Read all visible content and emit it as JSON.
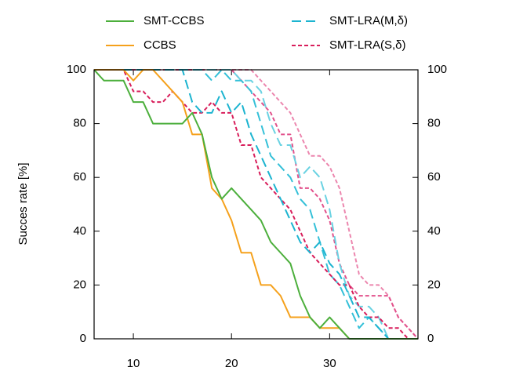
{
  "chart_data": {
    "type": "line",
    "ylabel": "Succes rate [%]",
    "x": [
      6,
      7,
      8,
      9,
      10,
      11,
      12,
      13,
      14,
      15,
      16,
      17,
      18,
      19,
      20,
      21,
      22,
      23,
      24,
      25,
      26,
      27,
      28,
      29,
      30,
      31,
      32,
      33,
      34,
      35,
      36,
      37,
      38,
      39
    ],
    "xlim": [
      6,
      39
    ],
    "xticks": [
      10,
      20,
      30
    ],
    "ylim": [
      0,
      100
    ],
    "yticks": [
      0,
      20,
      40,
      60,
      80,
      100
    ],
    "y2lim": [
      0,
      100
    ],
    "y2ticks": [
      0,
      20,
      40,
      60,
      80,
      100
    ],
    "grid": false,
    "series": [
      {
        "name": "SMT-CCBS",
        "color": "#4caf3c",
        "dash": "none",
        "values": [
          100,
          96,
          96,
          96,
          88,
          88,
          80,
          80,
          80,
          80,
          84,
          76,
          60,
          52,
          56,
          52,
          48,
          44,
          36,
          32,
          28,
          16,
          8,
          4,
          8,
          4,
          0,
          0,
          0,
          0,
          0,
          0,
          0,
          0
        ]
      },
      {
        "name": "CCBS",
        "color": "#f5a11c",
        "dash": "none",
        "values": [
          100,
          100,
          100,
          100,
          96,
          100,
          100,
          96,
          92,
          88,
          76,
          76,
          56,
          52,
          44,
          32,
          32,
          20,
          20,
          16,
          8,
          8,
          8,
          4,
          4,
          4,
          0,
          0,
          0,
          0,
          0,
          0,
          0,
          0
        ]
      },
      {
        "name": "SMT-LRA(M,δ)",
        "color": "#1cb4d0",
        "dash": "12,6",
        "values": [
          100,
          100,
          100,
          100,
          100,
          100,
          100,
          100,
          100,
          100,
          88,
          84,
          84,
          92,
          84,
          88,
          76,
          68,
          60,
          52,
          44,
          36,
          32,
          36,
          28,
          24,
          16,
          8,
          8,
          4,
          0,
          0,
          0,
          0
        ]
      },
      {
        "name": "SMT-LRA(S,δ)",
        "color": "#d81e5b",
        "dash": "5,3",
        "values": [
          100,
          100,
          100,
          100,
          92,
          92,
          88,
          88,
          92,
          88,
          84,
          84,
          88,
          84,
          84,
          72,
          72,
          60,
          56,
          52,
          48,
          40,
          32,
          28,
          24,
          20,
          20,
          12,
          8,
          8,
          4,
          4,
          0,
          0
        ]
      },
      {
        "color": "#34c0d8",
        "dash": "12,6",
        "values": [
          100,
          100,
          100,
          100,
          100,
          100,
          100,
          100,
          100,
          100,
          100,
          100,
          96,
          100,
          96,
          96,
          92,
          80,
          68,
          64,
          60,
          52,
          48,
          36,
          24,
          20,
          12,
          4,
          8,
          4,
          0,
          0,
          0,
          0
        ]
      },
      {
        "color": "#6ad2e2",
        "dash": "12,6",
        "values": [
          100,
          100,
          100,
          100,
          100,
          100,
          100,
          100,
          100,
          100,
          100,
          100,
          100,
          100,
          100,
          96,
          96,
          92,
          80,
          72,
          72,
          60,
          64,
          60,
          48,
          28,
          16,
          12,
          12,
          8,
          0,
          0,
          0,
          0
        ]
      },
      {
        "color": "#e2528c",
        "dash": "5,3",
        "values": [
          100,
          100,
          100,
          100,
          100,
          100,
          100,
          100,
          100,
          100,
          100,
          100,
          100,
          100,
          100,
          96,
          92,
          88,
          84,
          76,
          76,
          56,
          56,
          52,
          44,
          28,
          20,
          16,
          16,
          16,
          16,
          8,
          4,
          0
        ]
      },
      {
        "color": "#ec86ae",
        "dash": "5,3",
        "values": [
          100,
          100,
          100,
          100,
          100,
          100,
          100,
          100,
          100,
          100,
          100,
          100,
          100,
          100,
          100,
          100,
          100,
          96,
          92,
          88,
          84,
          76,
          68,
          68,
          64,
          56,
          40,
          24,
          20,
          20,
          16,
          8,
          4,
          0
        ]
      }
    ]
  }
}
